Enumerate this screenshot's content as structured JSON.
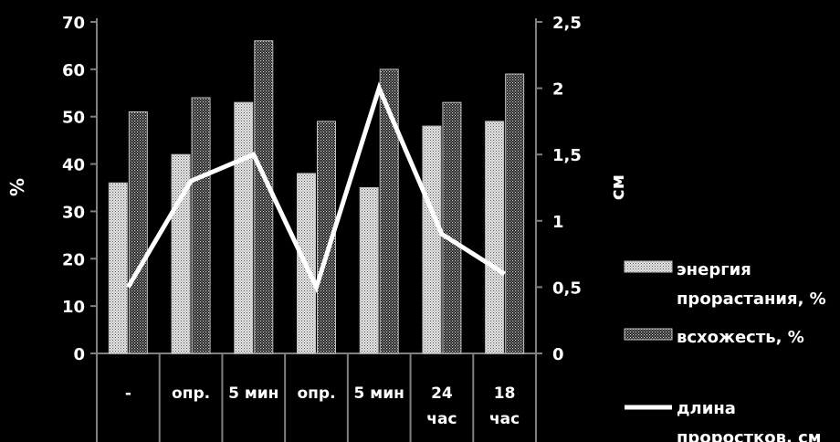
{
  "chart_data": {
    "type": "bar",
    "categories": [
      {
        "lines": [
          "-"
        ]
      },
      {
        "lines": [
          "опр."
        ]
      },
      {
        "lines": [
          "5 мин"
        ]
      },
      {
        "lines": [
          "опр."
        ]
      },
      {
        "lines": [
          "5 мин"
        ]
      },
      {
        "lines": [
          "24",
          "час"
        ]
      },
      {
        "lines": [
          "18",
          "час"
        ]
      }
    ],
    "series": [
      {
        "name": "энергия прорастания, %",
        "legend_lines": [
          "энергия",
          "прорастания, %"
        ],
        "type": "bar",
        "axis": "left",
        "pattern": "light-dots",
        "values": [
          36,
          42,
          53,
          38,
          35,
          48,
          49
        ]
      },
      {
        "name": "всхожесть, %",
        "legend_lines": [
          "всхожесть, %"
        ],
        "type": "bar",
        "axis": "left",
        "pattern": "dark-dots",
        "values": [
          51,
          54,
          66,
          49,
          60,
          53,
          59
        ]
      },
      {
        "name": "длина проростков, см",
        "legend_lines": [
          "длина",
          "проростков, см"
        ],
        "type": "line",
        "axis": "right",
        "color": "#ffffff",
        "values": [
          0.5,
          1.3,
          1.5,
          0.5,
          2.0,
          0.9,
          0.6
        ]
      }
    ],
    "y_left": {
      "label": "%",
      "min": 0,
      "max": 70,
      "ticks": [
        "0",
        "10",
        "20",
        "30",
        "40",
        "50",
        "60",
        "70"
      ]
    },
    "y_right": {
      "label": "см",
      "min": 0,
      "max": 2.5,
      "ticks": [
        "0",
        "0,5",
        "1",
        "1,5",
        "2",
        "2,5"
      ]
    },
    "grid": false,
    "legend_position": "right",
    "colors": {
      "background": "#000000",
      "foreground": "#ffffff",
      "axis": "#808080"
    }
  }
}
